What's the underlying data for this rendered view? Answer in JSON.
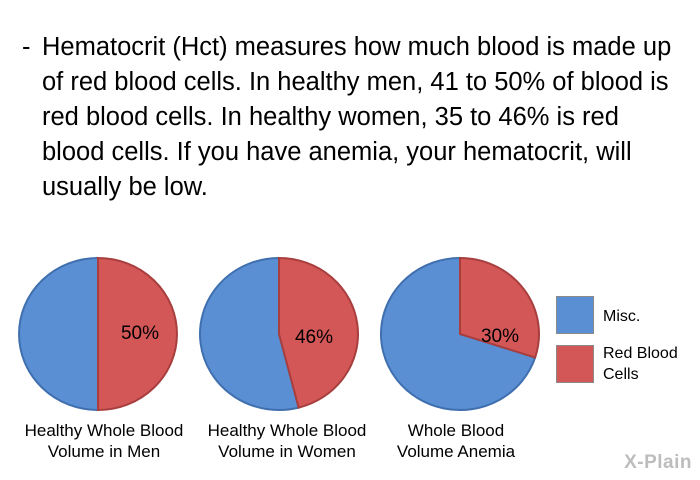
{
  "intro": {
    "bullet": "-",
    "text": "Hematocrit (Hct) measures how much blood is made up of red blood cells. In healthy men, 41 to 50% of blood is red blood cells. In healthy women, 35 to 46% is red blood cells. If you have anemia, your hematocrit, will usually be low."
  },
  "chart_data": [
    {
      "type": "pie",
      "title": "Healthy Whole Blood Volume in Men",
      "slices": [
        {
          "label": "Misc.",
          "value": 50
        },
        {
          "label": "Red Blood Cells",
          "value": 50,
          "data_label": "50%"
        }
      ]
    },
    {
      "type": "pie",
      "title": "Healthy Whole Blood Volume in Women",
      "slices": [
        {
          "label": "Misc.",
          "value": 54
        },
        {
          "label": "Red Blood Cells",
          "value": 46,
          "data_label": "46%"
        }
      ]
    },
    {
      "type": "pie",
      "title": "Whole Blood Volume Anemia",
      "slices": [
        {
          "label": "Misc.",
          "value": 70
        },
        {
          "label": "Red Blood Cells",
          "value": 30,
          "data_label": "30%"
        }
      ]
    }
  ],
  "captions": [
    {
      "line1": "Healthy Whole Blood",
      "line2": "Volume in Men"
    },
    {
      "line1": "Healthy Whole Blood",
      "line2": "Volume in Women"
    },
    {
      "line1": "Whole Blood",
      "line2": "Volume Anemia"
    }
  ],
  "legend": [
    {
      "label_line1": "Misc.",
      "label_line2": "",
      "color": "#5b8fd3"
    },
    {
      "label_line1": "Red Blood",
      "label_line2": "Cells",
      "color": "#d45757"
    }
  ],
  "colors": {
    "misc": "#5b8fd3",
    "rbc": "#d45757",
    "misc_edge": "#3f6fae",
    "rbc_edge": "#a83e3e"
  },
  "logo": "X-Plain"
}
